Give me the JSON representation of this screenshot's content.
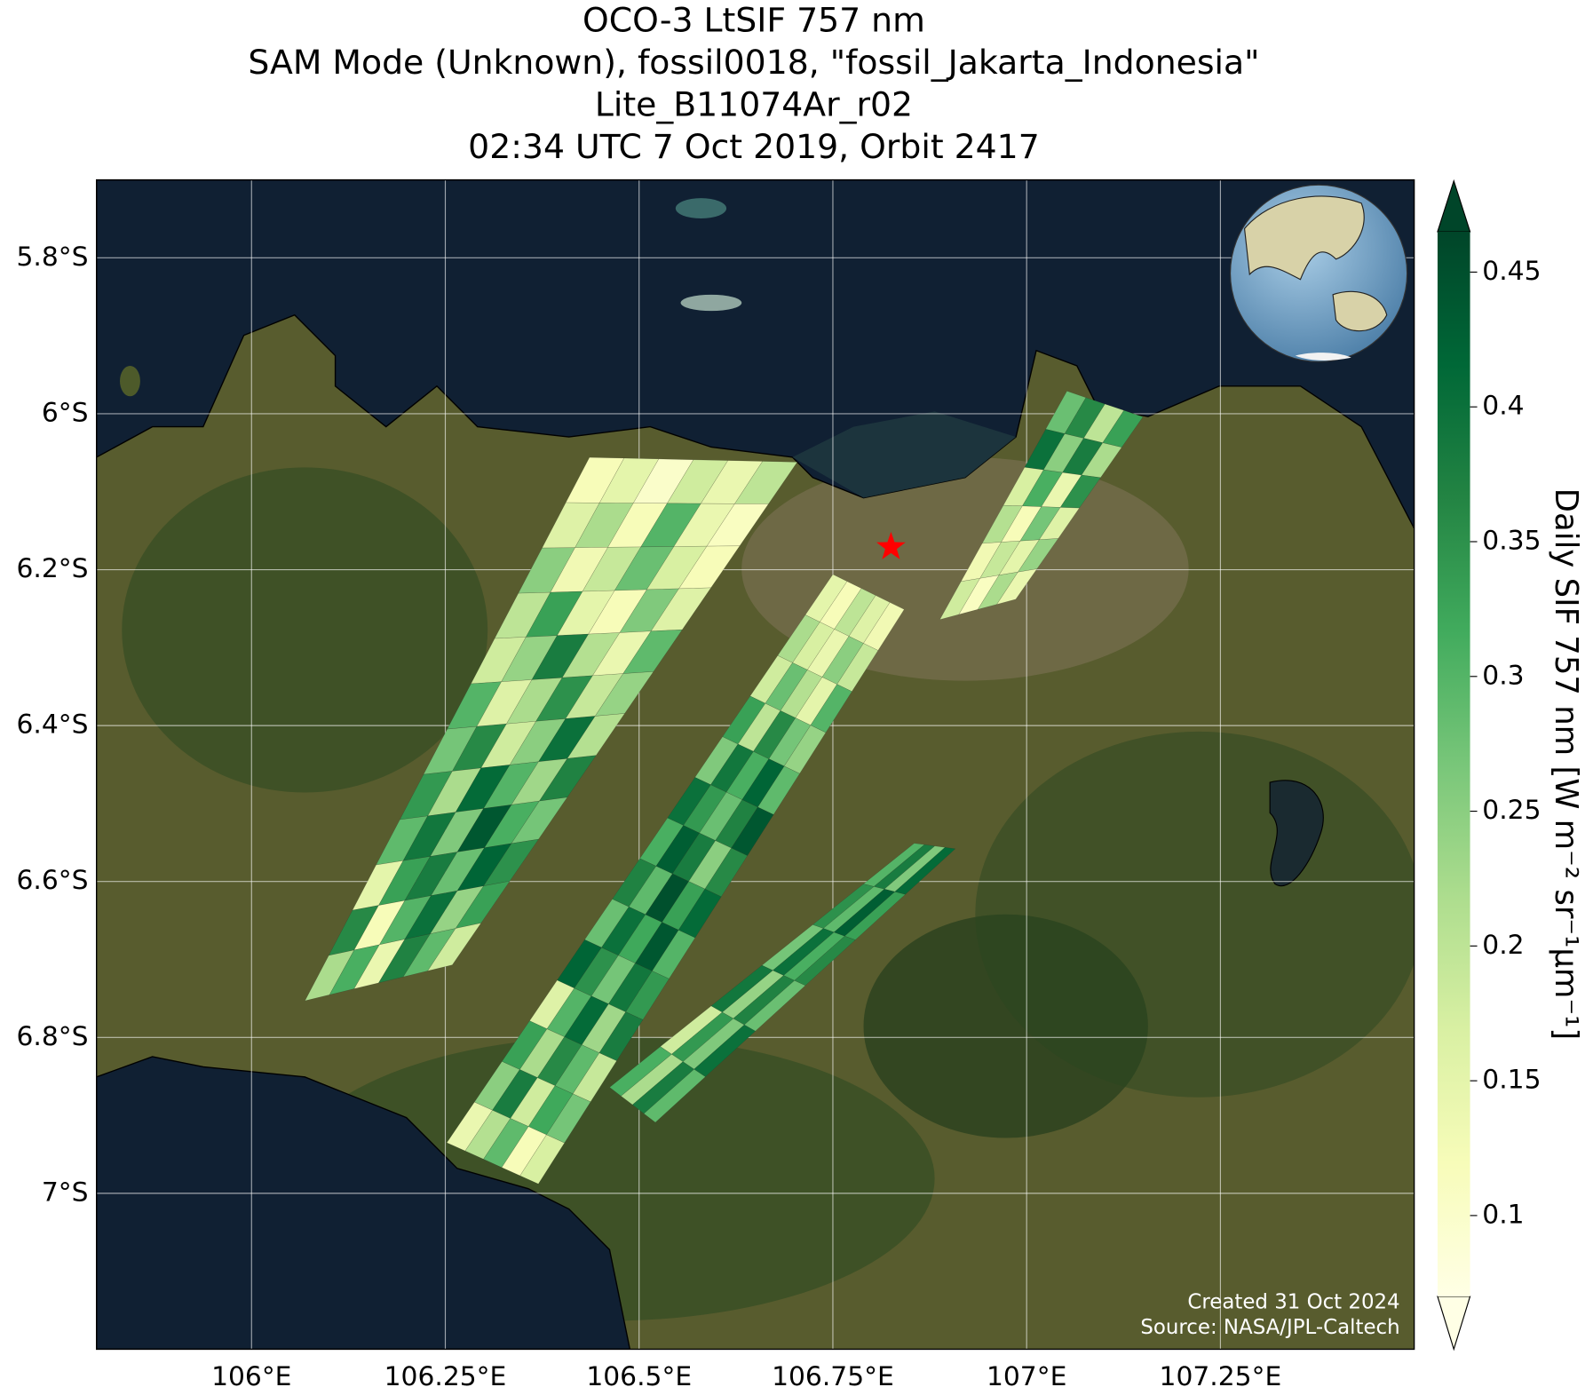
{
  "chart_data": {
    "type": "map",
    "title": [
      "OCO-3 LtSIF 757 nm",
      "SAM Mode (Unknown), fossil0018, \"fossil_Jakarta_Indonesia\"",
      "Lite_B11074Ar_r02",
      "02:34 UTC 7 Oct 2019, Orbit 2417"
    ],
    "xlim": [
      105.8,
      107.5
    ],
    "ylim": [
      -7.2,
      -5.7
    ],
    "xticks": [
      {
        "value": 106,
        "label": "106°E"
      },
      {
        "value": 106.25,
        "label": "106.25°E"
      },
      {
        "value": 106.5,
        "label": "106.5°E"
      },
      {
        "value": 106.75,
        "label": "106.75°E"
      },
      {
        "value": 107,
        "label": "107°E"
      },
      {
        "value": 107.25,
        "label": "107.25°E"
      }
    ],
    "yticks": [
      {
        "value": -5.8,
        "label": "5.8°S"
      },
      {
        "value": -6,
        "label": "6°S"
      },
      {
        "value": -6.2,
        "label": "6.2°S"
      },
      {
        "value": -6.4,
        "label": "6.4°S"
      },
      {
        "value": -6.6,
        "label": "6.6°S"
      },
      {
        "value": -6.8,
        "label": "6.8°S"
      },
      {
        "value": -7,
        "label": "7°S"
      }
    ],
    "grid": true,
    "colorbar_label": "Daily SIF 757 nm [W m⁻² sr⁻¹μm⁻¹]",
    "clim": [
      0.07,
      0.465
    ],
    "cticks": [
      0.1,
      0.15,
      0.2,
      0.25,
      0.3,
      0.35,
      0.4,
      0.45
    ],
    "cmap": [
      "#ffffe5",
      "#f7fcb9",
      "#d9f0a3",
      "#addd8e",
      "#78c679",
      "#41ab5d",
      "#238443",
      "#006837",
      "#004529"
    ],
    "target": {
      "lon": 106.825,
      "lat": -6.171,
      "color": "#ff0000"
    },
    "annotations": [
      "Created 31 Oct 2024",
      "Source: NASA/JPL-Caltech"
    ],
    "swaths": [
      {
        "corners": [
          [
            106.436,
            -6.056
          ],
          [
            106.704,
            -6.062
          ],
          [
            106.259,
            -6.707
          ],
          [
            106.069,
            -6.753
          ]
        ],
        "values": [
          [
            0.12,
            0.15,
            0.1,
            0.18,
            0.14,
            0.2
          ],
          [
            0.16,
            0.22,
            0.12,
            0.3,
            0.14,
            0.11
          ],
          [
            0.25,
            0.13,
            0.19,
            0.28,
            0.17,
            0.12
          ],
          [
            0.2,
            0.33,
            0.15,
            0.12,
            0.26,
            0.16
          ],
          [
            0.18,
            0.24,
            0.38,
            0.21,
            0.14,
            0.29
          ],
          [
            0.3,
            0.16,
            0.22,
            0.35,
            0.19,
            0.24
          ],
          [
            0.27,
            0.36,
            0.18,
            0.25,
            0.4,
            0.21
          ],
          [
            0.34,
            0.22,
            0.41,
            0.3,
            0.23,
            0.37
          ],
          [
            0.29,
            0.39,
            0.26,
            0.44,
            0.31,
            0.27
          ],
          [
            0.15,
            0.33,
            0.38,
            0.28,
            0.42,
            0.35
          ],
          [
            0.36,
            0.12,
            0.3,
            0.4,
            0.24,
            0.33
          ],
          [
            0.22,
            0.31,
            0.14,
            0.37,
            0.29,
            0.18
          ]
        ]
      },
      {
        "corners": [
          [
            106.75,
            -6.206
          ],
          [
            106.842,
            -6.251
          ],
          [
            106.37,
            -6.988
          ],
          [
            106.252,
            -6.935
          ]
        ],
        "values": [
          [
            0.15,
            0.12,
            0.2,
            0.16,
            0.13
          ],
          [
            0.22,
            0.17,
            0.14,
            0.25,
            0.19
          ],
          [
            0.18,
            0.28,
            0.21,
            0.15,
            0.3
          ],
          [
            0.33,
            0.2,
            0.36,
            0.27,
            0.24
          ],
          [
            0.26,
            0.39,
            0.31,
            0.42,
            0.29
          ],
          [
            0.4,
            0.34,
            0.28,
            0.37,
            0.44
          ],
          [
            0.31,
            0.43,
            0.38,
            0.25,
            0.36
          ],
          [
            0.37,
            0.29,
            0.45,
            0.33,
            0.41
          ],
          [
            0.28,
            0.4,
            0.32,
            0.44,
            0.3
          ],
          [
            0.42,
            0.35,
            0.27,
            0.39,
            0.34
          ],
          [
            0.16,
            0.3,
            0.41,
            0.23,
            0.38
          ],
          [
            0.33,
            0.22,
            0.36,
            0.29,
            0.19
          ],
          [
            0.25,
            0.38,
            0.18,
            0.32,
            0.27
          ],
          [
            0.14,
            0.21,
            0.29,
            0.12,
            0.17
          ]
        ]
      },
      {
        "corners": [
          [
            106.855,
            -6.551
          ],
          [
            106.908,
            -6.558
          ],
          [
            106.521,
            -6.909
          ],
          [
            106.462,
            -6.864
          ]
        ],
        "values": [
          [
            0.3,
            0.38,
            0.26,
            0.41
          ],
          [
            0.35,
            0.29,
            0.43,
            0.33
          ],
          [
            0.27,
            0.4,
            0.31,
            0.36
          ],
          [
            0.39,
            0.24,
            0.37,
            0.28
          ],
          [
            0.18,
            0.34,
            0.26,
            0.4
          ],
          [
            0.31,
            0.22,
            0.38,
            0.29
          ]
        ]
      },
      {
        "corners": [
          [
            107.052,
            -5.971
          ],
          [
            107.15,
            -6.004
          ],
          [
            106.986,
            -6.238
          ],
          [
            106.888,
            -6.264
          ]
        ],
        "values": [
          [
            0.28,
            0.36,
            0.2,
            0.33
          ],
          [
            0.4,
            0.25,
            0.38,
            0.22
          ],
          [
            0.17,
            0.31,
            0.14,
            0.35
          ],
          [
            0.21,
            0.12,
            0.27,
            0.16
          ],
          [
            0.13,
            0.19,
            0.15,
            0.24
          ],
          [
            0.18,
            0.11,
            0.22,
            0.14
          ]
        ]
      }
    ]
  }
}
